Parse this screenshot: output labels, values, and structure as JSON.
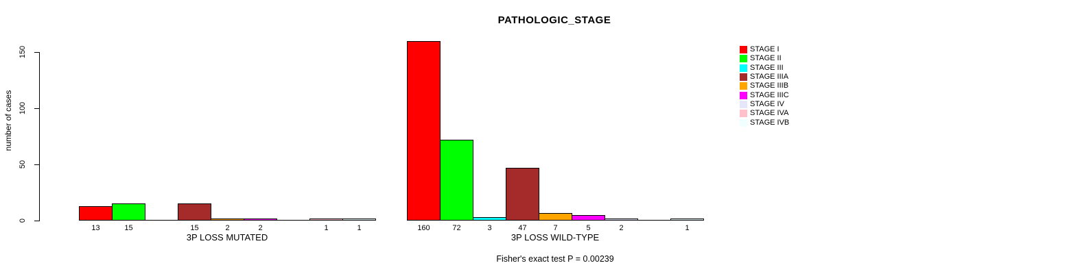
{
  "chart_data": {
    "type": "bar",
    "title": "PATHOLOGIC_STAGE",
    "ylabel": "number of cases",
    "ylim": [
      0,
      165
    ],
    "yticks": [
      0,
      50,
      100,
      150
    ],
    "grid": false,
    "legend_position": "right",
    "background": "#FFFFFF",
    "bar_border_color": "#000000",
    "stages": [
      {
        "label": "STAGE I",
        "color": "#FF0000"
      },
      {
        "label": "STAGE II",
        "color": "#00FF00"
      },
      {
        "label": "STAGE III",
        "color": "#00FFFF"
      },
      {
        "label": "STAGE IIIA",
        "color": "#A52A2A"
      },
      {
        "label": "STAGE IIIB",
        "color": "#FFA500"
      },
      {
        "label": "STAGE IIIC",
        "color": "#FF00FF"
      },
      {
        "label": "STAGE IV",
        "color": "#E6E6FA"
      },
      {
        "label": "STAGE IVA",
        "color": "#FFC0CB"
      },
      {
        "label": "STAGE IVB",
        "color": "#F0FFFF"
      }
    ],
    "groups": [
      {
        "label": "3P LOSS MUTATED",
        "values": [
          13,
          15,
          0,
          15,
          2,
          2,
          0,
          1,
          1
        ]
      },
      {
        "label": "3P LOSS WILD-TYPE",
        "values": [
          160,
          72,
          3,
          47,
          7,
          5,
          2,
          0,
          1
        ]
      }
    ],
    "annotation": "Fisher's exact test P = 0.00239"
  }
}
